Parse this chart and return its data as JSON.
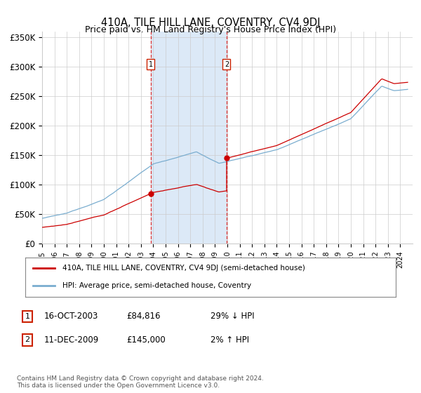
{
  "title": "410A, TILE HILL LANE, COVENTRY, CV4 9DJ",
  "subtitle": "Price paid vs. HM Land Registry's House Price Index (HPI)",
  "ylim": [
    0,
    360000
  ],
  "yticks": [
    0,
    50000,
    100000,
    150000,
    200000,
    250000,
    300000,
    350000
  ],
  "ytick_labels": [
    "£0",
    "£50K",
    "£100K",
    "£150K",
    "£200K",
    "£250K",
    "£300K",
    "£350K"
  ],
  "xmin": 1995.0,
  "xmax": 2025.0,
  "purchase1_date": 2003.79,
  "purchase1_price": 84816,
  "purchase2_date": 2009.94,
  "purchase2_price": 145000,
  "shade_color": "#dce9f7",
  "red_line_color": "#cc0000",
  "blue_line_color": "#7aadcf",
  "legend_label_red": "410A, TILE HILL LANE, COVENTRY, CV4 9DJ (semi-detached house)",
  "legend_label_blue": "HPI: Average price, semi-detached house, Coventry",
  "annotation1_label": "1",
  "annotation1_date": "16-OCT-2003",
  "annotation1_price": "£84,816",
  "annotation1_pct": "29% ↓ HPI",
  "annotation2_label": "2",
  "annotation2_date": "11-DEC-2009",
  "annotation2_price": "£145,000",
  "annotation2_pct": "2% ↑ HPI",
  "footer": "Contains HM Land Registry data © Crown copyright and database right 2024.\nThis data is licensed under the Open Government Licence v3.0."
}
